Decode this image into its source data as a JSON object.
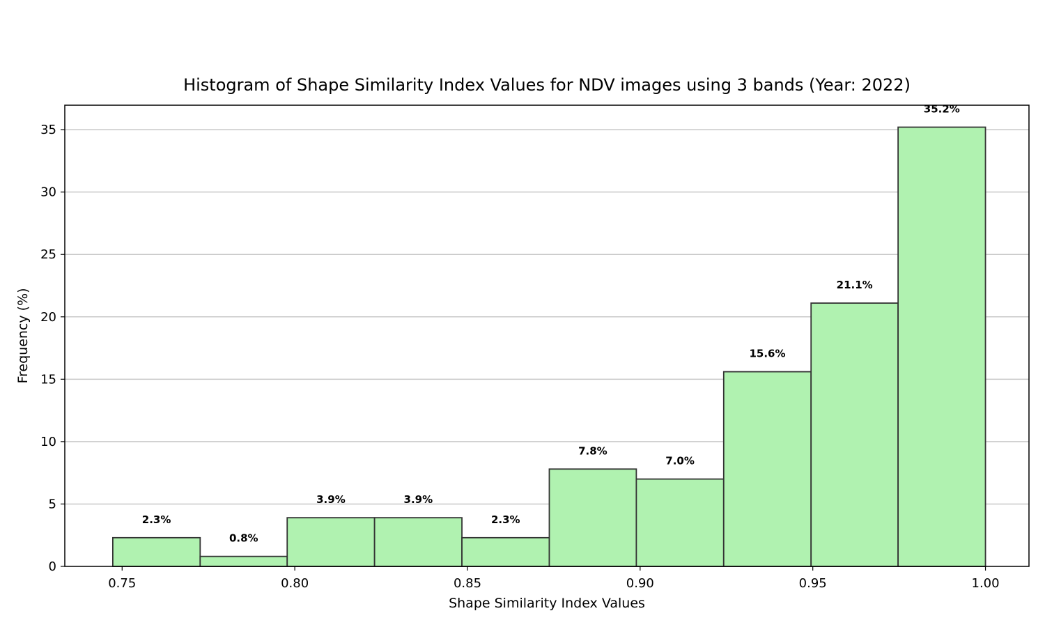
{
  "chart_data": {
    "type": "bar",
    "title": "Histogram of Shape Similarity Index Values for NDV images using 3 bands (Year: 2022)",
    "xlabel": "Shape Similarity Index Values",
    "ylabel": "Frequency (%)",
    "xlim": [
      0.7334,
      1.0126
    ],
    "ylim": [
      0,
      36.96
    ],
    "grid": "y",
    "bar_color": "#b0f2b0",
    "edge_color": "#333333",
    "x_ticks": [
      0.75,
      0.8,
      0.85,
      0.9,
      0.95,
      1.0
    ],
    "x_tick_labels": [
      "0.75",
      "0.80",
      "0.85",
      "0.90",
      "0.95",
      "1.00"
    ],
    "y_ticks": [
      0,
      5,
      10,
      15,
      20,
      25,
      30,
      35
    ],
    "y_tick_labels": [
      "0",
      "5",
      "10",
      "15",
      "20",
      "25",
      "30",
      "35"
    ],
    "bins": [
      {
        "start": 0.7473,
        "end": 0.7726,
        "value": 2.3,
        "label": "2.3%"
      },
      {
        "start": 0.7726,
        "end": 0.7978,
        "value": 0.8,
        "label": "0.8%"
      },
      {
        "start": 0.7978,
        "end": 0.8231,
        "value": 3.9,
        "label": "3.9%"
      },
      {
        "start": 0.8231,
        "end": 0.8484,
        "value": 3.9,
        "label": "3.9%"
      },
      {
        "start": 0.8484,
        "end": 0.8737,
        "value": 2.3,
        "label": "2.3%"
      },
      {
        "start": 0.8737,
        "end": 0.8989,
        "value": 7.8,
        "label": "7.8%"
      },
      {
        "start": 0.8989,
        "end": 0.9242,
        "value": 7.0,
        "label": "7.0%"
      },
      {
        "start": 0.9242,
        "end": 0.9495,
        "value": 15.6,
        "label": "15.6%"
      },
      {
        "start": 0.9495,
        "end": 0.9747,
        "value": 21.1,
        "label": "21.1%"
      },
      {
        "start": 0.9747,
        "end": 1.0,
        "value": 35.2,
        "label": "35.2%"
      }
    ]
  }
}
